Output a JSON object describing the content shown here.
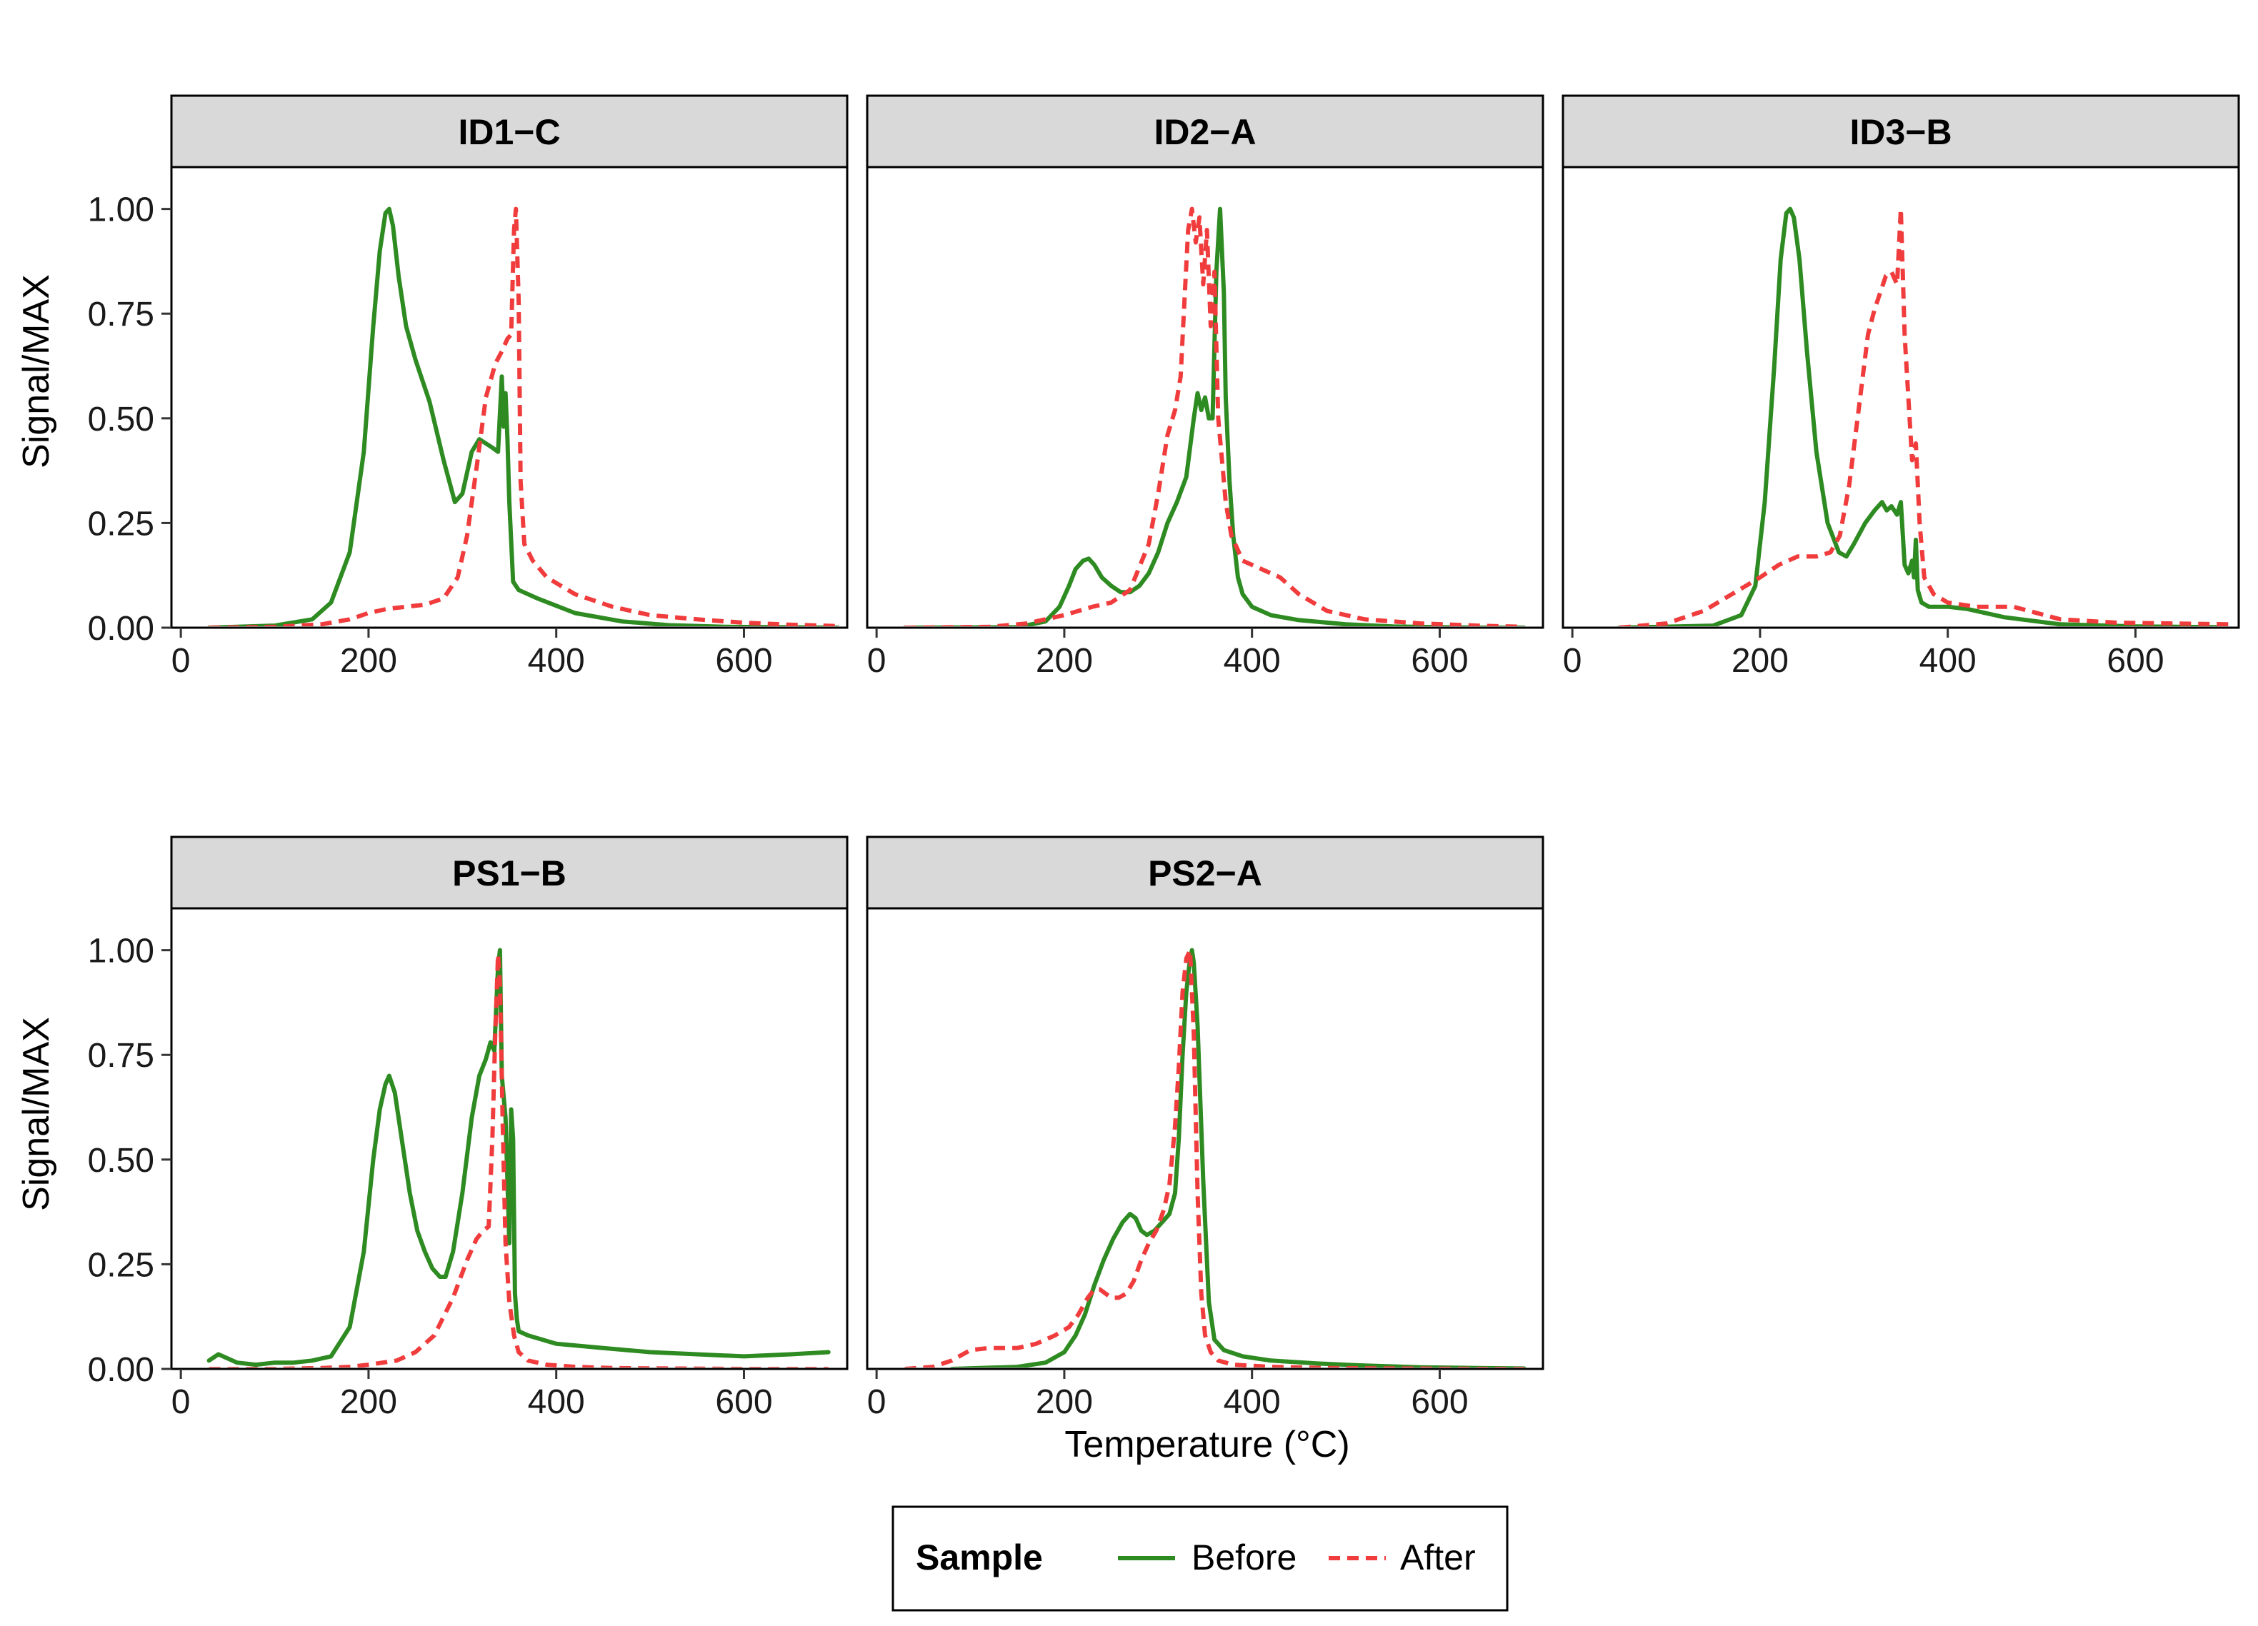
{
  "chart_data": {
    "type": "line",
    "layout": "facet_grid",
    "xlabel": "Temperature (°C)",
    "ylabel": "Signal/MAX",
    "xlim": [
      -10,
      710
    ],
    "ylim": [
      0,
      1.1
    ],
    "x_ticks": [
      0,
      200,
      400,
      600
    ],
    "y_ticks": [
      0,
      0.25,
      0.5,
      0.75,
      1.0
    ],
    "y_tick_labels": [
      "0.00",
      "0.25",
      "0.50",
      "0.75",
      "1.00"
    ],
    "legend": {
      "title": "Sample",
      "position": "bottom",
      "entries": [
        {
          "label": "Before",
          "color": "#2e8b22",
          "style": "solid"
        },
        {
          "label": "After",
          "color": "#f03c3c",
          "style": "dashed"
        }
      ]
    },
    "panels": [
      {
        "title": "ID1−C",
        "series": [
          {
            "name": "Before",
            "x": [
              30,
              100,
              140,
              160,
              180,
              195,
              205,
              212,
              218,
              222,
              226,
              232,
              240,
              250,
              265,
              280,
              292,
              300,
              310,
              318,
              325,
              332,
              338,
              342,
              344,
              346,
              348,
              350,
              354,
              360,
              380,
              420,
              470,
              520,
              580,
              640,
              700
            ],
            "y": [
              0.0,
              0.005,
              0.02,
              0.06,
              0.18,
              0.42,
              0.72,
              0.9,
              0.99,
              1.0,
              0.96,
              0.84,
              0.72,
              0.64,
              0.54,
              0.4,
              0.3,
              0.32,
              0.42,
              0.45,
              0.44,
              0.43,
              0.42,
              0.6,
              0.48,
              0.56,
              0.45,
              0.3,
              0.11,
              0.09,
              0.07,
              0.035,
              0.015,
              0.006,
              0.002,
              0.001,
              0.0
            ]
          },
          {
            "name": "After",
            "x": [
              30,
              100,
              150,
              180,
              200,
              220,
              240,
              260,
              280,
              295,
              305,
              315,
              325,
              335,
              342,
              348,
              352,
              355,
              357,
              360,
              362,
              366,
              375,
              390,
              420,
              460,
              500,
              550,
              600,
              650,
              700
            ],
            "y": [
              0.0,
              0.002,
              0.008,
              0.02,
              0.035,
              0.045,
              0.05,
              0.055,
              0.07,
              0.12,
              0.22,
              0.38,
              0.55,
              0.63,
              0.66,
              0.69,
              0.7,
              0.95,
              1.0,
              0.78,
              0.35,
              0.2,
              0.16,
              0.12,
              0.08,
              0.05,
              0.03,
              0.02,
              0.012,
              0.007,
              0.004
            ]
          }
        ]
      },
      {
        "title": "ID2−A",
        "series": [
          {
            "name": "Before",
            "x": [
              30,
              150,
              180,
              195,
              205,
              212,
              220,
              226,
              232,
              240,
              250,
              260,
              270,
              280,
              290,
              300,
              310,
              320,
              330,
              338,
              342,
              346,
              350,
              354,
              358,
              362,
              366,
              370,
              372,
              376,
              380,
              385,
              390,
              400,
              420,
              450,
              500,
              550,
              600,
              650,
              690
            ],
            "y": [
              0.0,
              0.001,
              0.015,
              0.05,
              0.1,
              0.14,
              0.16,
              0.165,
              0.15,
              0.12,
              0.1,
              0.085,
              0.085,
              0.1,
              0.13,
              0.18,
              0.25,
              0.3,
              0.36,
              0.5,
              0.56,
              0.52,
              0.55,
              0.5,
              0.5,
              0.85,
              1.0,
              0.8,
              0.55,
              0.35,
              0.22,
              0.12,
              0.08,
              0.05,
              0.03,
              0.018,
              0.008,
              0.003,
              0.001,
              0.0,
              0.0
            ]
          },
          {
            "name": "After",
            "x": [
              30,
              120,
              160,
              200,
              230,
              250,
              270,
              290,
              300,
              310,
              318,
              324,
              328,
              332,
              336,
              340,
              344,
              348,
              352,
              356,
              360,
              364,
              368,
              372,
              378,
              390,
              410,
              430,
              450,
              480,
              520,
              580,
              640,
              690
            ],
            "y": [
              0.0,
              0.002,
              0.01,
              0.03,
              0.05,
              0.06,
              0.09,
              0.2,
              0.32,
              0.46,
              0.52,
              0.6,
              0.78,
              0.95,
              1.0,
              0.92,
              0.98,
              0.82,
              0.95,
              0.72,
              0.85,
              0.5,
              0.4,
              0.3,
              0.22,
              0.16,
              0.14,
              0.12,
              0.08,
              0.04,
              0.02,
              0.01,
              0.005,
              0.002
            ]
          }
        ]
      },
      {
        "title": "ID3−B",
        "series": [
          {
            "name": "Before",
            "x": [
              50,
              150,
              180,
              195,
              205,
              215,
              222,
              228,
              232,
              236,
              242,
              250,
              260,
              272,
              284,
              292,
              300,
              312,
              322,
              330,
              335,
              340,
              346,
              350,
              354,
              358,
              362,
              364,
              366,
              368,
              372,
              380,
              400,
              420,
              460,
              520,
              600,
              690
            ],
            "y": [
              0.0,
              0.005,
              0.03,
              0.1,
              0.3,
              0.62,
              0.88,
              0.99,
              1.0,
              0.98,
              0.88,
              0.66,
              0.42,
              0.25,
              0.18,
              0.17,
              0.2,
              0.25,
              0.28,
              0.3,
              0.28,
              0.29,
              0.27,
              0.3,
              0.15,
              0.13,
              0.16,
              0.12,
              0.21,
              0.09,
              0.06,
              0.05,
              0.05,
              0.045,
              0.025,
              0.008,
              0.003,
              0.001
            ]
          },
          {
            "name": "After",
            "x": [
              50,
              100,
              140,
              170,
              200,
              220,
              240,
              260,
              275,
              285,
              295,
              305,
              315,
              322,
              328,
              334,
              340,
              346,
              350,
              354,
              358,
              362,
              366,
              370,
              375,
              385,
              400,
              430,
              470,
              520,
              580,
              640,
              700
            ],
            "y": [
              0.0,
              0.01,
              0.04,
              0.08,
              0.12,
              0.15,
              0.17,
              0.17,
              0.18,
              0.22,
              0.34,
              0.52,
              0.7,
              0.76,
              0.8,
              0.84,
              0.85,
              0.82,
              1.0,
              0.7,
              0.55,
              0.4,
              0.44,
              0.25,
              0.12,
              0.08,
              0.06,
              0.05,
              0.05,
              0.02,
              0.012,
              0.01,
              0.008
            ]
          }
        ]
      },
      {
        "title": "PS1−B",
        "series": [
          {
            "name": "Before",
            "x": [
              30,
              40,
              60,
              80,
              100,
              120,
              140,
              160,
              180,
              195,
              205,
              212,
              218,
              222,
              228,
              236,
              244,
              252,
              260,
              268,
              276,
              282,
              290,
              300,
              310,
              318,
              325,
              330,
              334,
              338,
              340,
              342,
              346,
              350,
              352,
              354,
              356,
              358,
              360,
              370,
              400,
              450,
              500,
              550,
              600,
              650,
              690
            ],
            "y": [
              0.02,
              0.035,
              0.015,
              0.01,
              0.015,
              0.015,
              0.02,
              0.03,
              0.1,
              0.28,
              0.5,
              0.62,
              0.68,
              0.7,
              0.66,
              0.54,
              0.42,
              0.33,
              0.28,
              0.24,
              0.22,
              0.22,
              0.28,
              0.42,
              0.6,
              0.7,
              0.74,
              0.78,
              0.76,
              0.96,
              1.0,
              0.7,
              0.6,
              0.3,
              0.62,
              0.55,
              0.18,
              0.12,
              0.09,
              0.08,
              0.06,
              0.05,
              0.04,
              0.035,
              0.03,
              0.035,
              0.04
            ]
          },
          {
            "name": "After",
            "x": [
              30,
              100,
              150,
              180,
              200,
              230,
              250,
              270,
              290,
              305,
              315,
              322,
              328,
              332,
              335,
              338,
              340,
              343,
              346,
              350,
              355,
              360,
              370,
              390,
              420,
              460,
              520,
              600,
              690
            ],
            "y": [
              0.0,
              0.0,
              0.002,
              0.005,
              0.01,
              0.02,
              0.04,
              0.08,
              0.17,
              0.26,
              0.31,
              0.33,
              0.34,
              0.55,
              0.8,
              0.99,
              0.92,
              0.58,
              0.3,
              0.16,
              0.08,
              0.04,
              0.02,
              0.01,
              0.005,
              0.002,
              0.001,
              0.0,
              0.0
            ]
          }
        ]
      },
      {
        "title": "PS2−A",
        "series": [
          {
            "name": "Before",
            "x": [
              80,
              150,
              180,
              200,
              212,
              222,
              232,
              242,
              252,
              262,
              270,
              276,
              282,
              288,
              296,
              304,
              312,
              318,
              322,
              326,
              330,
              334,
              336,
              338,
              342,
              348,
              354,
              360,
              370,
              390,
              420,
              470,
              520,
              580,
              640,
              690
            ],
            "y": [
              0.0,
              0.005,
              0.015,
              0.04,
              0.08,
              0.13,
              0.2,
              0.26,
              0.31,
              0.35,
              0.37,
              0.36,
              0.33,
              0.32,
              0.33,
              0.35,
              0.37,
              0.42,
              0.55,
              0.75,
              0.9,
              0.98,
              1.0,
              0.97,
              0.82,
              0.45,
              0.16,
              0.07,
              0.045,
              0.03,
              0.02,
              0.013,
              0.008,
              0.004,
              0.002,
              0.001
            ]
          },
          {
            "name": "After",
            "x": [
              30,
              60,
              80,
              100,
              120,
              150,
              170,
              190,
              205,
              215,
              225,
              232,
              238,
              244,
              250,
              258,
              266,
              274,
              282,
              290,
              298,
              306,
              312,
              318,
              322,
              326,
              330,
              334,
              338,
              342,
              346,
              350,
              356,
              364,
              380,
              420,
              480,
              560,
              640,
              690
            ],
            "y": [
              0.0,
              0.005,
              0.02,
              0.045,
              0.05,
              0.05,
              0.06,
              0.08,
              0.1,
              0.13,
              0.17,
              0.19,
              0.19,
              0.18,
              0.17,
              0.17,
              0.18,
              0.21,
              0.26,
              0.3,
              0.33,
              0.38,
              0.44,
              0.58,
              0.72,
              0.9,
              0.98,
              1.0,
              0.8,
              0.42,
              0.18,
              0.08,
              0.04,
              0.02,
              0.01,
              0.005,
              0.002,
              0.001,
              0.0,
              0.0
            ]
          }
        ]
      }
    ]
  },
  "colors": {
    "before": "#2e8b22",
    "after": "#f03c3c"
  }
}
